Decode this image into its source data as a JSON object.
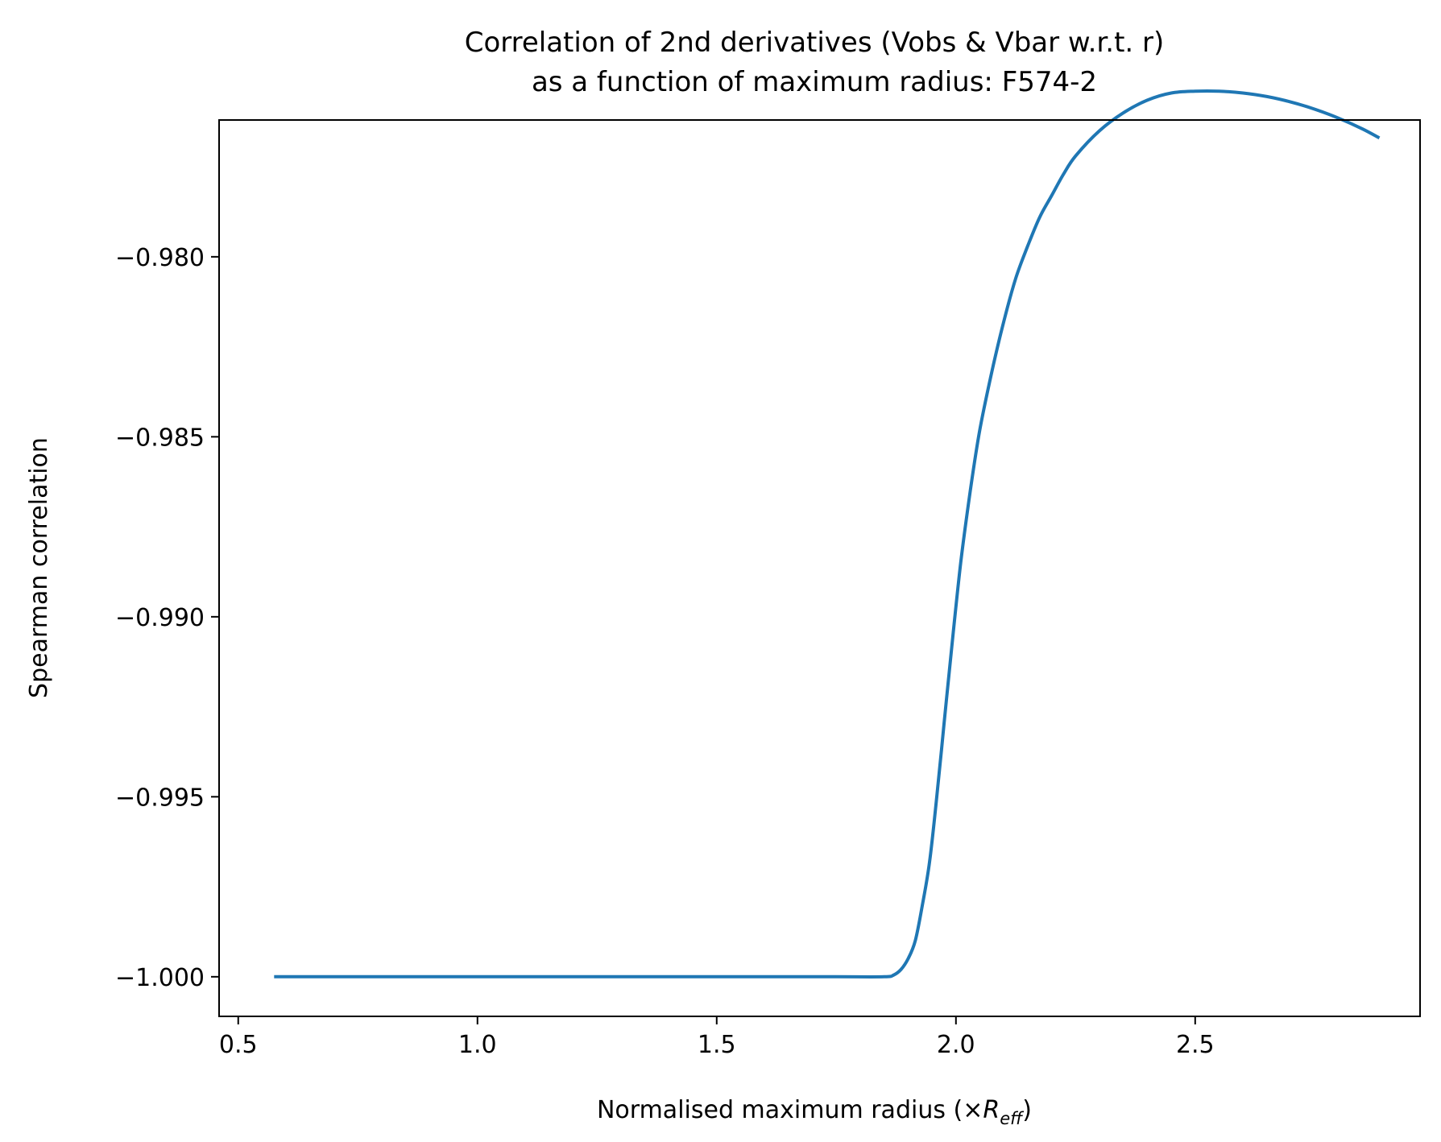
{
  "chart_data": {
    "type": "line",
    "title_line1": "Correlation of 2nd derivatives (Vobs & Vbar w.r.t. r)",
    "title_line2": "as a function of maximum radius: F574-2",
    "xlabel": "Normalised maximum radius (×",
    "xlabel_math": {
      "symbol": "R",
      "subscript": "eff",
      "close": ")"
    },
    "ylabel": "Spearman correlation",
    "xlim": [
      0.46,
      2.97
    ],
    "ylim": [
      -1.0011,
      -0.9762
    ],
    "xticks": [
      0.5,
      1.0,
      1.5,
      2.0,
      2.5
    ],
    "xtick_labels": [
      "0.5",
      "1.0",
      "1.5",
      "2.0",
      "2.5"
    ],
    "yticks": [
      -1.0,
      -0.995,
      -0.99,
      -0.985,
      -0.98
    ],
    "ytick_labels": [
      "−1.000",
      "−0.995",
      "−0.990",
      "−0.985",
      "−0.980"
    ],
    "grid": false,
    "line_color": "#1f77b4",
    "series": [
      {
        "x": [
          0.575,
          0.8,
          1.0,
          1.2,
          1.4,
          1.6,
          1.75,
          1.85,
          1.87,
          1.885,
          1.9,
          1.915,
          1.93,
          1.945,
          1.96,
          1.975,
          1.99,
          2.01,
          2.03,
          2.05,
          2.075,
          2.1,
          2.125,
          2.15,
          2.175,
          2.2,
          2.225,
          2.25,
          2.3,
          2.35,
          2.4,
          2.45,
          2.5,
          2.55,
          2.6,
          2.65,
          2.7,
          2.75,
          2.8,
          2.85,
          2.885
        ],
        "y": [
          -1.0,
          -1.0,
          -1.0,
          -1.0,
          -1.0,
          -1.0,
          -1.0,
          -1.0,
          -0.99995,
          -0.9998,
          -0.9995,
          -0.999,
          -0.998,
          -0.9968,
          -0.995,
          -0.993,
          -0.991,
          -0.9885,
          -0.9865,
          -0.9848,
          -0.9832,
          -0.9818,
          -0.9806,
          -0.9797,
          -0.9789,
          -0.9783,
          -0.9777,
          -0.9772,
          -0.9765,
          -0.976,
          -0.97565,
          -0.97545,
          -0.9754,
          -0.9754,
          -0.97545,
          -0.97555,
          -0.9757,
          -0.9759,
          -0.97615,
          -0.97645,
          -0.9767
        ]
      }
    ]
  }
}
